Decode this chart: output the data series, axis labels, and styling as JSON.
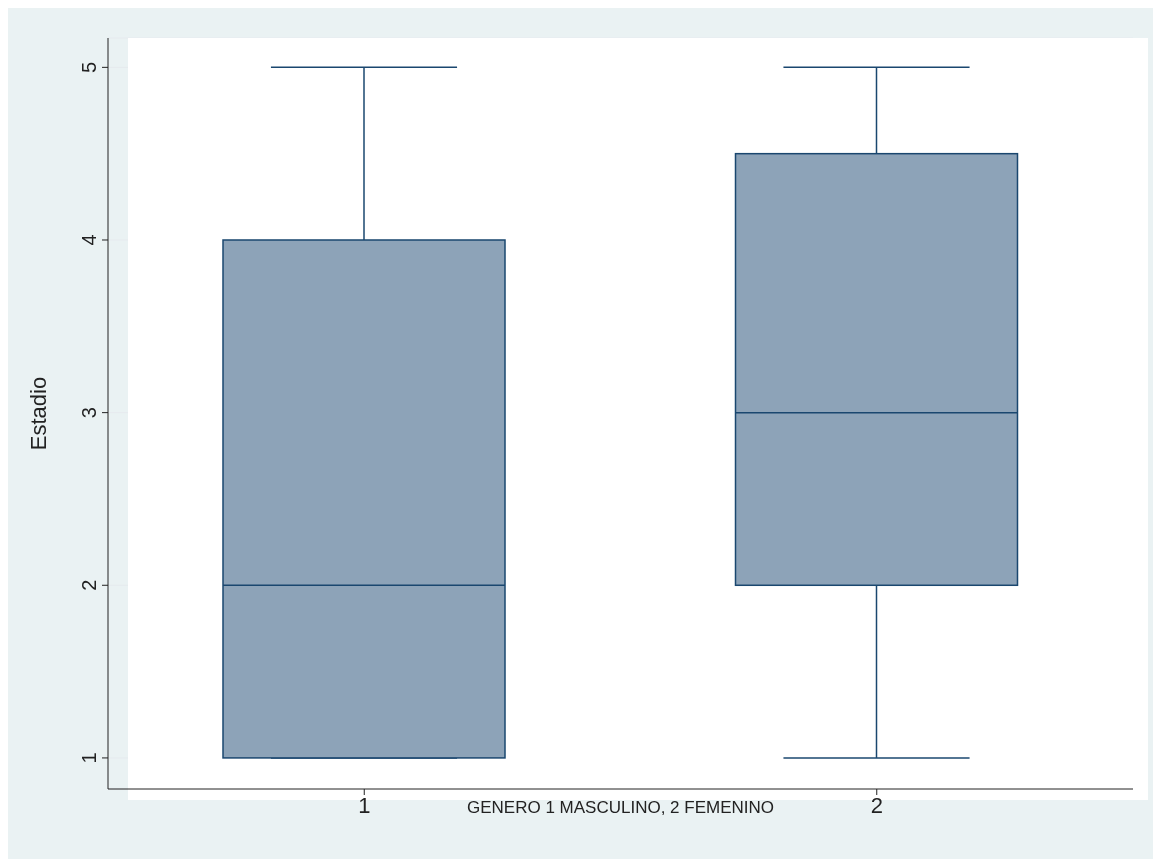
{
  "chart_data": {
    "type": "box",
    "ylabel": "Estadio",
    "xlabel": "GENERO 1 MASCULINO, 2 FEMENINO",
    "categories": [
      "1",
      "2"
    ],
    "boxes": [
      {
        "low": 1,
        "q1": 1,
        "median": 2,
        "q3": 4,
        "high": 5
      },
      {
        "low": 1,
        "q1": 2,
        "median": 3,
        "q3": 4.5,
        "high": 5
      }
    ],
    "color": "#8da3b8",
    "ylim": [
      0.82,
      5.17
    ],
    "yticks": [
      1,
      2,
      3,
      4,
      5
    ],
    "grid": "y"
  }
}
